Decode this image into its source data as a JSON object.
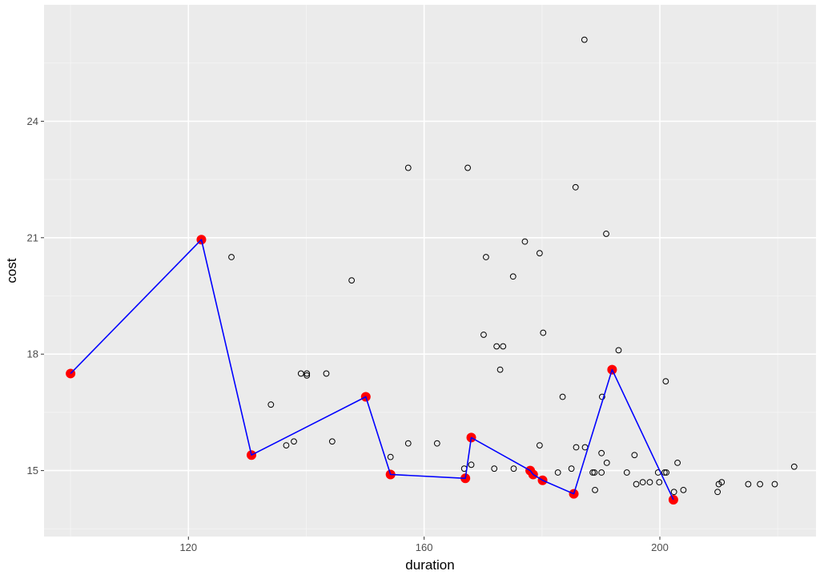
{
  "chart_data": {
    "type": "scatter",
    "title": "",
    "xlabel": "duration",
    "ylabel": "cost",
    "xlim": [
      95.5,
      226.5
    ],
    "ylim": [
      13.3,
      27.0
    ],
    "x_ticks": [
      120,
      160,
      200
    ],
    "y_ticks": [
      15,
      18,
      21,
      24
    ],
    "x_tick_labels": [
      "120",
      "160",
      "200"
    ],
    "y_tick_labels": [
      "15",
      "18",
      "21",
      "24"
    ],
    "grid": true,
    "legend": "none",
    "colors": {
      "panel_background": "#ebebeb",
      "grid_major": "#ffffff",
      "grid_minor": "#f5f5f5",
      "point_stroke": "#000000",
      "highlight_point": "#ff0000",
      "line": "#0000ff",
      "tick_label": "#4d4d4d",
      "tick_mark": "#333333"
    },
    "series": [
      {
        "kind": "points",
        "style": "hollow-circle",
        "points": [
          [
            187.2,
            26.1
          ],
          [
            157.3,
            22.8
          ],
          [
            167.4,
            22.8
          ],
          [
            185.7,
            22.3
          ],
          [
            190.9,
            21.1
          ],
          [
            177.1,
            20.9
          ],
          [
            127.3,
            20.5
          ],
          [
            170.5,
            20.5
          ],
          [
            179.6,
            20.6
          ],
          [
            175.1,
            20.0
          ],
          [
            147.7,
            19.9
          ],
          [
            170.1,
            18.5
          ],
          [
            180.2,
            18.55
          ],
          [
            172.3,
            18.2
          ],
          [
            173.4,
            18.2
          ],
          [
            193.0,
            18.1
          ],
          [
            172.9,
            17.6
          ],
          [
            139.1,
            17.5
          ],
          [
            140.1,
            17.5
          ],
          [
            140.1,
            17.45
          ],
          [
            143.4,
            17.5
          ],
          [
            201.0,
            17.3
          ],
          [
            183.5,
            16.9
          ],
          [
            190.2,
            16.9
          ],
          [
            134.0,
            16.7
          ],
          [
            137.9,
            15.75
          ],
          [
            144.4,
            15.75
          ],
          [
            136.6,
            15.65
          ],
          [
            157.3,
            15.7
          ],
          [
            162.2,
            15.7
          ],
          [
            179.6,
            15.65
          ],
          [
            185.8,
            15.6
          ],
          [
            187.3,
            15.6
          ],
          [
            154.3,
            15.35
          ],
          [
            195.7,
            15.4
          ],
          [
            190.1,
            15.45
          ],
          [
            168.0,
            15.15
          ],
          [
            166.8,
            15.05
          ],
          [
            171.9,
            15.05
          ],
          [
            175.2,
            15.05
          ],
          [
            185.0,
            15.05
          ],
          [
            191.0,
            15.2
          ],
          [
            203.0,
            15.2
          ],
          [
            222.8,
            15.1
          ],
          [
            182.7,
            14.95
          ],
          [
            188.6,
            14.95
          ],
          [
            188.9,
            14.95
          ],
          [
            190.1,
            14.95
          ],
          [
            194.4,
            14.95
          ],
          [
            199.7,
            14.95
          ],
          [
            201.1,
            14.95
          ],
          [
            200.8,
            14.95
          ],
          [
            197.1,
            14.7
          ],
          [
            198.3,
            14.7
          ],
          [
            199.9,
            14.7
          ],
          [
            196.0,
            14.65
          ],
          [
            210.5,
            14.7
          ],
          [
            210.0,
            14.65
          ],
          [
            215.0,
            14.65
          ],
          [
            217.0,
            14.65
          ],
          [
            219.5,
            14.65
          ],
          [
            189.0,
            14.5
          ],
          [
            204.0,
            14.5
          ],
          [
            202.4,
            14.45
          ],
          [
            209.8,
            14.45
          ]
        ]
      },
      {
        "kind": "path",
        "style": "line-with-filled-points",
        "points": [
          [
            100.0,
            17.5
          ],
          [
            122.2,
            20.95
          ],
          [
            130.7,
            15.4
          ],
          [
            150.1,
            16.9
          ],
          [
            154.3,
            14.9
          ],
          [
            167.0,
            14.8
          ],
          [
            168.0,
            15.85
          ],
          [
            178.0,
            15.0
          ],
          [
            178.5,
            14.9
          ],
          [
            180.1,
            14.75
          ],
          [
            185.4,
            14.4
          ],
          [
            191.9,
            17.6
          ],
          [
            202.3,
            14.25
          ]
        ]
      }
    ]
  }
}
